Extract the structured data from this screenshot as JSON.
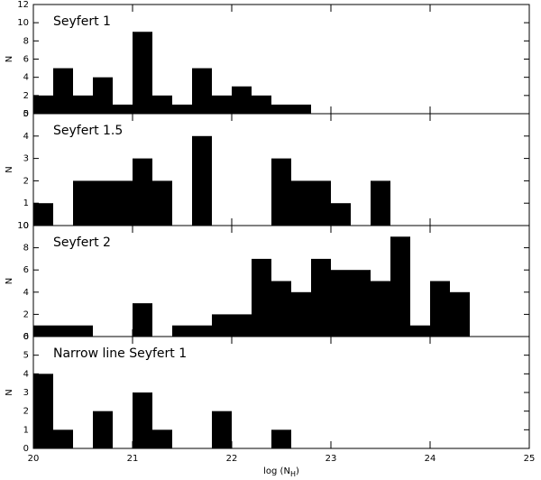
{
  "chart_data": [
    {
      "type": "histogram",
      "title": "Seyfert 1",
      "ylabel": "N",
      "bins": [
        20,
        20.2,
        20.4,
        20.6,
        20.8,
        21,
        21.2,
        21.4,
        21.6,
        21.8,
        22,
        22.2,
        22.4,
        22.6,
        22.8,
        23,
        23.2,
        23.4,
        23.6,
        23.8,
        24,
        24.2,
        24.4,
        24.6,
        24.8,
        25
      ],
      "values": [
        2,
        5,
        2,
        4,
        1,
        9,
        2,
        1,
        5,
        2,
        3,
        2,
        1,
        1,
        0,
        0,
        0,
        0,
        0,
        0,
        0,
        0,
        0,
        0,
        0
      ],
      "color": "#000000",
      "xlim": [
        20,
        25
      ],
      "xticks": [
        20,
        21,
        22,
        23,
        24,
        25
      ],
      "ylim": [
        0,
        12
      ],
      "yticks": [
        0,
        2,
        4,
        6,
        8,
        10,
        12
      ]
    },
    {
      "type": "histogram",
      "title": "Seyfert 1.5",
      "ylabel": "N",
      "bins": [
        20,
        20.2,
        20.4,
        20.6,
        20.8,
        21,
        21.2,
        21.4,
        21.6,
        21.8,
        22,
        22.2,
        22.4,
        22.6,
        22.8,
        23,
        23.2,
        23.4,
        23.6,
        23.8,
        24,
        24.2,
        24.4,
        24.6,
        24.8,
        25
      ],
      "values": [
        1,
        0,
        2,
        2,
        2,
        3,
        2,
        0,
        4,
        0,
        0,
        0,
        3,
        2,
        2,
        1,
        0,
        2,
        0,
        0,
        0,
        0,
        0,
        0,
        0
      ],
      "color": "#000000",
      "xlim": [
        20,
        25
      ],
      "xticks": [
        20,
        21,
        22,
        23,
        24,
        25
      ],
      "ylim": [
        0,
        5
      ],
      "yticks": [
        0,
        1,
        2,
        3,
        4,
        5
      ]
    },
    {
      "type": "histogram",
      "title": "Seyfert 2",
      "ylabel": "N",
      "bins": [
        20,
        20.2,
        20.4,
        20.6,
        20.8,
        21,
        21.2,
        21.4,
        21.6,
        21.8,
        22,
        22.2,
        22.4,
        22.6,
        22.8,
        23,
        23.2,
        23.4,
        23.6,
        23.8,
        24,
        24.2,
        24.4,
        24.6,
        24.8,
        25
      ],
      "values": [
        1,
        1,
        1,
        0,
        0,
        3,
        0,
        1,
        1,
        2,
        2,
        7,
        5,
        4,
        7,
        6,
        6,
        5,
        9,
        1,
        5,
        4,
        0,
        0,
        0
      ],
      "color": "#000000",
      "xlim": [
        20,
        25
      ],
      "xticks": [
        20,
        21,
        22,
        23,
        24,
        25
      ],
      "ylim": [
        0,
        10
      ],
      "yticks": [
        0,
        2,
        4,
        6,
        8,
        10
      ]
    },
    {
      "type": "histogram",
      "title": "Narrow line Seyfert 1",
      "ylabel": "N",
      "xlabel": {
        "text": "log (N",
        "sub": "H",
        "end": ")"
      },
      "bins": [
        20,
        20.2,
        20.4,
        20.6,
        20.8,
        21,
        21.2,
        21.4,
        21.6,
        21.8,
        22,
        22.2,
        22.4,
        22.6,
        22.8,
        23,
        23.2,
        23.4,
        23.6,
        23.8,
        24,
        24.2,
        24.4,
        24.6,
        24.8,
        25
      ],
      "values": [
        4,
        1,
        0,
        2,
        0,
        3,
        1,
        0,
        0,
        2,
        0,
        0,
        1,
        0,
        0,
        0,
        0,
        0,
        0,
        0,
        0,
        0,
        0,
        0,
        0
      ],
      "color": "#000000",
      "xlim": [
        20,
        25
      ],
      "xticks": [
        20,
        21,
        22,
        23,
        24,
        25
      ],
      "ylim": [
        0,
        6
      ],
      "yticks": [
        0,
        1,
        2,
        3,
        4,
        5,
        6
      ]
    }
  ]
}
